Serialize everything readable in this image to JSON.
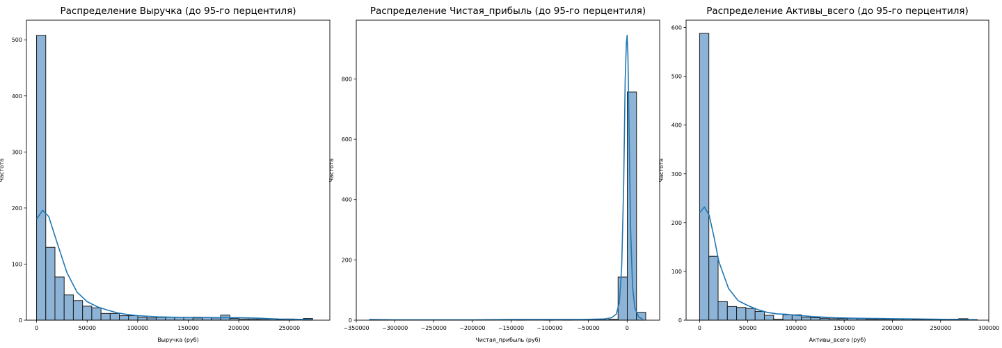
{
  "chart_data": [
    {
      "type": "bar",
      "subtype": "histogram_with_kde",
      "title": "Распределение Выручка (до 95-го перцентиля)",
      "xlabel": "Выручка (руб)",
      "ylabel": "Частота",
      "xlim": [
        -10000,
        290000
      ],
      "ylim": [
        0,
        535
      ],
      "xticks": [
        0,
        50000,
        100000,
        150000,
        200000,
        250000
      ],
      "xtick_labels": [
        "0",
        "50000",
        "100000",
        "150000",
        "200000",
        "250000"
      ],
      "yticks": [
        0,
        100,
        200,
        300,
        400,
        500
      ],
      "ytick_labels": [
        "0",
        "100",
        "200",
        "300",
        "400",
        "500"
      ],
      "bin_start": 0,
      "bin_width": 9100,
      "values": [
        508,
        130,
        77,
        45,
        35,
        25,
        22,
        12,
        12,
        8,
        8,
        5,
        4,
        5,
        5,
        5,
        5,
        4,
        5,
        4,
        9,
        3,
        2,
        2,
        2,
        2,
        1,
        2,
        0,
        3
      ],
      "kde": {
        "x": [
          0,
          6000,
          12000,
          20000,
          30000,
          40000,
          50000,
          60000,
          70000,
          80000,
          90000,
          100000,
          120000,
          140000,
          160000,
          180000,
          200000,
          220000,
          240000,
          260000,
          272000
        ],
        "y": [
          180,
          196,
          185,
          140,
          85,
          50,
          33,
          24,
          18,
          13,
          10,
          8,
          6,
          5,
          5,
          4.5,
          4.5,
          3.5,
          2,
          1.5,
          1
        ]
      },
      "grid": false,
      "bar_color": "#8db4d6",
      "line_color": "#1f77b4"
    },
    {
      "type": "bar",
      "subtype": "histogram_with_kde",
      "title": "Распределение Чистая_прибыль (до 95-го перцентиля)",
      "xlabel": "Чистая_прибыль (руб)",
      "ylabel": "Частота",
      "xlim": [
        -350000,
        42000
      ],
      "ylim": [
        0,
        995
      ],
      "xticks": [
        -350000,
        -300000,
        -250000,
        -200000,
        -150000,
        -100000,
        -50000,
        0
      ],
      "xtick_labels": [
        "−350000",
        "−300000",
        "−250000",
        "−200000",
        "−150000",
        "−100000",
        "−50000",
        "0"
      ],
      "yticks": [
        0,
        200,
        400,
        600,
        800
      ],
      "ytick_labels": [
        "0",
        "200",
        "400",
        "600",
        "800"
      ],
      "bin_start": -333000,
      "bin_width": 11900,
      "values": [
        1,
        1,
        0,
        0,
        0,
        0,
        0,
        0,
        0,
        0,
        0,
        0,
        0,
        0,
        0,
        0,
        1,
        0,
        0,
        1,
        0,
        1,
        0,
        0,
        1,
        1,
        3,
        143,
        757,
        26
      ],
      "kde": {
        "x": [
          -333000,
          -300000,
          -200000,
          -150000,
          -100000,
          -60000,
          -30000,
          -20000,
          -14000,
          -10000,
          -7000,
          -4500,
          -2500,
          -1000,
          0,
          1000,
          2500,
          4500,
          7000,
          10000,
          15000,
          20000
        ],
        "y": [
          2,
          1,
          1,
          2,
          2,
          2,
          4,
          8,
          20,
          60,
          180,
          450,
          800,
          920,
          945,
          880,
          620,
          300,
          110,
          40,
          10,
          4
        ]
      },
      "grid": false,
      "bar_color": "#8db4d6",
      "line_color": "#1f77b4"
    },
    {
      "type": "bar",
      "subtype": "histogram_with_kde",
      "title": "Распределение Активы_всего (до 95-го перцентиля)",
      "xlabel": "Активы_всего (руб)",
      "ylabel": "Частота",
      "xlim": [
        -14000,
        300000
      ],
      "ylim": [
        0,
        615
      ],
      "xticks": [
        0,
        50000,
        100000,
        150000,
        200000,
        250000,
        300000
      ],
      "xtick_labels": [
        "0",
        "50000",
        "100000",
        "150000",
        "200000",
        "250000",
        "300000"
      ],
      "yticks": [
        0,
        100,
        200,
        300,
        400,
        500,
        600
      ],
      "ytick_labels": [
        "0",
        "100",
        "200",
        "300",
        "400",
        "500",
        "600"
      ],
      "bin_start": 0,
      "bin_width": 9600,
      "values": [
        588,
        131,
        38,
        28,
        26,
        24,
        18,
        10,
        2,
        11,
        11,
        6,
        5,
        4,
        3,
        3,
        4,
        3,
        2,
        2,
        2,
        2,
        2,
        1,
        1,
        1,
        1,
        2,
        3,
        1
      ],
      "kde": {
        "x": [
          0,
          5000,
          10000,
          15000,
          20000,
          30000,
          40000,
          50000,
          60000,
          70000,
          80000,
          90000,
          100000,
          120000,
          140000,
          160000,
          180000,
          200000,
          220000,
          240000,
          260000,
          287000
        ],
        "y": [
          220,
          232,
          215,
          170,
          120,
          65,
          40,
          30,
          22,
          16,
          13,
          12,
          10,
          7,
          5,
          4,
          3.5,
          3,
          2.5,
          2,
          1.5,
          1
        ]
      },
      "grid": false,
      "bar_color": "#8db4d6",
      "line_color": "#1f77b4"
    }
  ]
}
